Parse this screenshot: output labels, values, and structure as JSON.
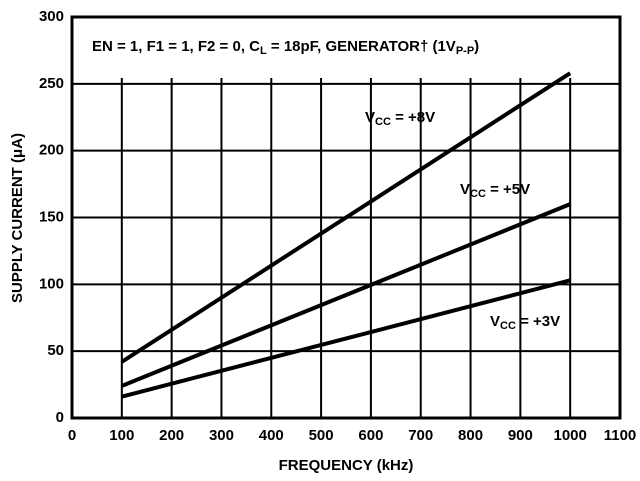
{
  "chart_data": {
    "type": "line",
    "title_parts": [
      {
        "text": "EN = 1, F1 = 1, F2 = 0, C"
      },
      {
        "text": "L",
        "sub": true
      },
      {
        "text": " = 18pF, GENERATOR† (1V"
      },
      {
        "text": "P-P",
        "sub": true
      },
      {
        "text": ")"
      }
    ],
    "x_label": "FREQUENCY (kHz)",
    "y_label": "SUPPLY CURRENT (μA)",
    "x": [
      100,
      1000
    ],
    "series": [
      {
        "label_parts": [
          {
            "text": "V"
          },
          {
            "text": "CC",
            "sub": true
          },
          {
            "text": " = +8V"
          }
        ],
        "color": "#000000",
        "values": [
          42,
          258
        ]
      },
      {
        "label_parts": [
          {
            "text": "V"
          },
          {
            "text": "CC",
            "sub": true
          },
          {
            "text": " = +5V"
          }
        ],
        "color": "#000000",
        "values": [
          24,
          160
        ]
      },
      {
        "label_parts": [
          {
            "text": "V"
          },
          {
            "text": "CC",
            "sub": true
          },
          {
            "text": " = +3V"
          }
        ],
        "color": "#000000",
        "values": [
          16,
          103
        ]
      }
    ],
    "xlim": [
      0,
      1100
    ],
    "ylim": [
      0,
      300
    ],
    "xticks": [
      0,
      100,
      200,
      300,
      400,
      500,
      600,
      700,
      800,
      900,
      1000,
      1100
    ],
    "yticks": [
      0,
      50,
      100,
      150,
      200,
      250,
      300
    ],
    "grid": true
  }
}
